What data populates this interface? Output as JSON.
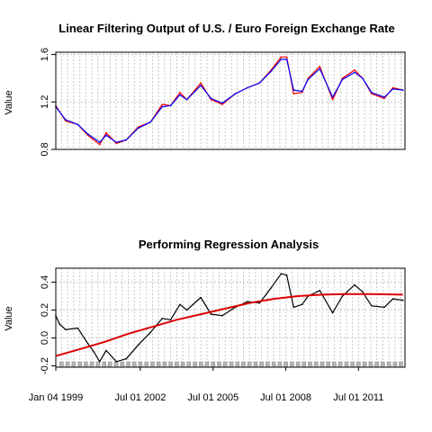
{
  "chart_data": [
    {
      "type": "line",
      "title": "Linear Filtering Output of  U.S. / Euro Foreign Exchange Rate",
      "ylabel": "Value",
      "ylim": [
        0.8,
        1.62
      ],
      "yticks": [
        0.8,
        1.2,
        1.6
      ],
      "ytick_labels": [
        "0.8",
        "1.2",
        "1.6"
      ],
      "x_range": [
        "1999-01-04",
        "2013-06-01"
      ],
      "grid": true,
      "colors": {
        "raw": "#ff0000",
        "filtered": "#0000ff",
        "grid": "#c8c8c8"
      },
      "series": [
        {
          "role": "raw",
          "x": [
            "1999-01-04",
            "1999-06-01",
            "1999-12-01",
            "2000-05-01",
            "2000-10-25",
            "2001-02-01",
            "2001-07-05",
            "2001-12-01",
            "2002-06-01",
            "2002-12-01",
            "2003-05-27",
            "2003-10-01",
            "2004-02-17",
            "2004-06-01",
            "2004-12-28",
            "2005-06-01",
            "2005-11-15",
            "2006-06-01",
            "2006-12-01",
            "2007-06-01",
            "2007-11-23",
            "2008-04-22",
            "2008-07-15",
            "2008-10-27",
            "2009-03-04",
            "2009-06-01",
            "2009-11-25",
            "2010-06-07",
            "2010-11-01",
            "2011-05-03",
            "2011-09-01",
            "2012-01-13",
            "2012-07-24",
            "2012-12-01",
            "2013-05-01"
          ],
          "y": [
            1.17,
            1.04,
            1.01,
            0.92,
            0.84,
            0.94,
            0.85,
            0.88,
            0.99,
            1.03,
            1.18,
            1.17,
            1.28,
            1.22,
            1.36,
            1.22,
            1.18,
            1.27,
            1.32,
            1.36,
            1.47,
            1.58,
            1.58,
            1.27,
            1.28,
            1.4,
            1.5,
            1.22,
            1.4,
            1.47,
            1.4,
            1.27,
            1.23,
            1.32,
            1.3
          ]
        },
        {
          "role": "filtered",
          "x": [
            "1999-01-04",
            "1999-06-01",
            "1999-12-01",
            "2000-05-01",
            "2000-10-25",
            "2001-02-01",
            "2001-07-05",
            "2001-12-01",
            "2002-06-01",
            "2002-12-01",
            "2003-05-27",
            "2003-10-01",
            "2004-02-17",
            "2004-06-01",
            "2004-12-28",
            "2005-06-01",
            "2005-11-15",
            "2006-06-01",
            "2006-12-01",
            "2007-06-01",
            "2007-11-23",
            "2008-04-22",
            "2008-07-15",
            "2008-10-27",
            "2009-03-04",
            "2009-06-01",
            "2009-11-25",
            "2010-06-07",
            "2010-11-01",
            "2011-05-03",
            "2011-09-01",
            "2012-01-13",
            "2012-07-24",
            "2012-12-01",
            "2013-05-01"
          ],
          "y": [
            1.16,
            1.05,
            1.01,
            0.93,
            0.86,
            0.92,
            0.86,
            0.88,
            0.98,
            1.03,
            1.16,
            1.17,
            1.26,
            1.22,
            1.34,
            1.23,
            1.19,
            1.27,
            1.32,
            1.36,
            1.46,
            1.56,
            1.56,
            1.3,
            1.29,
            1.39,
            1.48,
            1.24,
            1.39,
            1.45,
            1.4,
            1.28,
            1.24,
            1.31,
            1.3
          ]
        }
      ]
    },
    {
      "type": "line",
      "title": "Performing Regression Analysis",
      "ylabel": "Value",
      "ylim": [
        -0.21,
        0.5
      ],
      "yticks": [
        -0.2,
        0.0,
        0.2,
        0.4
      ],
      "ytick_labels": [
        "-0.2",
        "0.0",
        "0.2",
        "0.4"
      ],
      "x_range": [
        "1999-01-04",
        "2013-06-01"
      ],
      "xticks": [
        "1999-01-04",
        "2002-07-01",
        "2005-07-01",
        "2008-07-01",
        "2011-07-01"
      ],
      "xtick_labels": [
        "Jan 04 1999",
        "Jul 01 2002",
        "Jul 01 2005",
        "Jul 01 2008",
        "Jul 01 2011"
      ],
      "grid": true,
      "colors": {
        "residual": "#000000",
        "fit": "#dd0000",
        "grid": "#c8c8c8",
        "rug": "#b4b4b4"
      },
      "series": [
        {
          "role": "residual",
          "x": [
            "1999-01-04",
            "1999-03-01",
            "1999-06-01",
            "1999-12-01",
            "2000-05-01",
            "2000-08-01",
            "2000-10-25",
            "2001-02-01",
            "2001-07-05",
            "2001-12-01",
            "2002-06-01",
            "2002-12-01",
            "2003-05-27",
            "2003-10-01",
            "2004-02-17",
            "2004-06-01",
            "2004-12-28",
            "2005-06-01",
            "2005-11-15",
            "2006-06-01",
            "2006-12-01",
            "2007-06-01",
            "2007-11-23",
            "2008-04-22",
            "2008-07-15",
            "2008-10-27",
            "2009-03-04",
            "2009-06-01",
            "2009-11-25",
            "2010-06-07",
            "2010-11-01",
            "2011-05-03",
            "2011-09-01",
            "2012-01-13",
            "2012-07-24",
            "2012-12-01",
            "2013-05-01"
          ],
          "y": [
            0.16,
            0.1,
            0.06,
            0.07,
            -0.04,
            -0.1,
            -0.17,
            -0.09,
            -0.17,
            -0.15,
            -0.05,
            0.04,
            0.14,
            0.13,
            0.24,
            0.2,
            0.29,
            0.17,
            0.16,
            0.22,
            0.26,
            0.25,
            0.36,
            0.46,
            0.45,
            0.22,
            0.24,
            0.3,
            0.34,
            0.18,
            0.3,
            0.38,
            0.33,
            0.23,
            0.22,
            0.28,
            0.27
          ]
        },
        {
          "role": "fit",
          "x": [
            "1999-01-04",
            "2000-01-01",
            "2001-01-01",
            "2002-01-01",
            "2003-01-01",
            "2004-01-01",
            "2005-01-01",
            "2006-01-01",
            "2007-01-01",
            "2008-01-01",
            "2009-01-01",
            "2010-01-01",
            "2011-01-01",
            "2012-01-01",
            "2013-05-01"
          ],
          "y": [
            -0.13,
            -0.08,
            -0.03,
            0.03,
            0.08,
            0.13,
            0.17,
            0.21,
            0.25,
            0.28,
            0.3,
            0.31,
            0.315,
            0.315,
            0.31
          ]
        }
      ]
    }
  ]
}
